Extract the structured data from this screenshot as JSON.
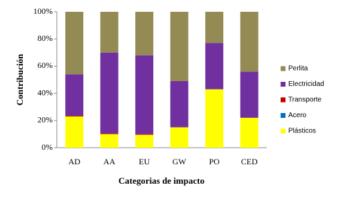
{
  "chart_data": {
    "type": "stacked-bar",
    "x_label": "Categorias de impacto",
    "y_label": "Contribución",
    "categories": [
      "AD",
      "AA",
      "EU",
      "GW",
      "PO",
      "CED"
    ],
    "series": [
      {
        "name": "Plásticos",
        "color": "#FFFF00",
        "values": [
          23,
          10,
          9.5,
          15,
          43,
          22
        ]
      },
      {
        "name": "Acero",
        "color": "#0070C0",
        "values": [
          0,
          0,
          0,
          0,
          0,
          0
        ]
      },
      {
        "name": "Transporte",
        "color": "#C00000",
        "values": [
          0.5,
          0.5,
          0.5,
          0,
          0,
          0
        ]
      },
      {
        "name": "Electricidad",
        "color": "#7030A0",
        "values": [
          30.5,
          59.5,
          58,
          34,
          34,
          34
        ]
      },
      {
        "name": "Perlita",
        "color": "#948A54",
        "values": [
          46,
          30,
          32,
          51,
          23,
          44
        ]
      }
    ],
    "ylim": [
      0,
      100
    ],
    "yticks": [
      {
        "value": 0,
        "label": "0%"
      },
      {
        "value": 20,
        "label": "20%"
      },
      {
        "value": 40,
        "label": "40%"
      },
      {
        "value": 60,
        "label": "60%"
      },
      {
        "value": 80,
        "label": "80%"
      },
      {
        "value": 100,
        "label": "100%"
      }
    ],
    "legend": "right"
  }
}
